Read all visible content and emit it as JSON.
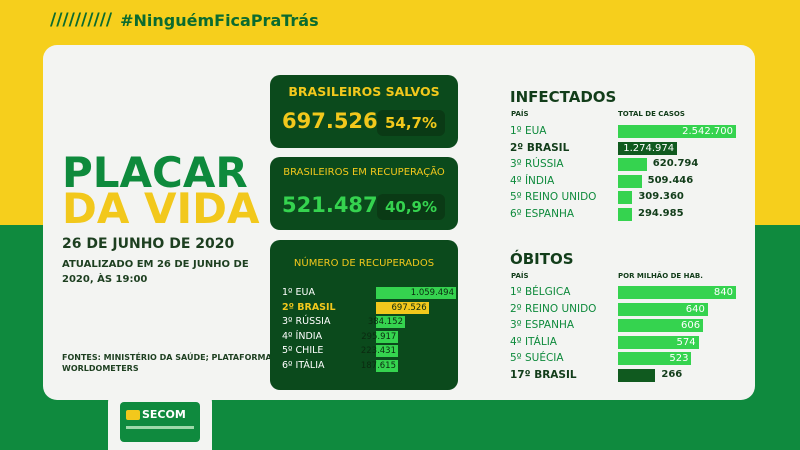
{
  "header": {
    "slashes": "//////////",
    "hashtag": "#NinguémFicaPraTrás"
  },
  "title": {
    "line1": "PLACAR",
    "line2": "DA VIDA",
    "date": "26 DE JUNHO DE 2020",
    "updated": "ATUALIZADO EM 26 DE JUNHO DE 2020, ÀS 19:00",
    "sources": "FONTES: MINISTÉRIO DA SAÚDE; PLATAFORMA WORLDOMETERS"
  },
  "saved": {
    "label": "BRASILEIROS SALVOS",
    "value": "697.526",
    "percent": "54,7%"
  },
  "recovery": {
    "label": "BRASILEIROS EM RECUPERAÇÃO",
    "value": "521.487",
    "percent": "40,9%"
  },
  "recovered": {
    "label": "NÚMERO DE RECUPERADOS",
    "rows": [
      {
        "label": "1º EUA",
        "value": "1.059.494",
        "n": 1059494
      },
      {
        "label": "2º BRASIL",
        "value": "697.526",
        "n": 697526,
        "highlight": true
      },
      {
        "label": "3º RÚSSIA",
        "value": "384.152",
        "n": 384152
      },
      {
        "label": "4º ÍNDIA",
        "value": "295.917",
        "n": 295917
      },
      {
        "label": "5º CHILE",
        "value": "223.431",
        "n": 223431
      },
      {
        "label": "6º ITÁLIA",
        "value": "187.615",
        "n": 187615
      }
    ]
  },
  "infected": {
    "title": "INFECTADOS",
    "col_country": "PAÍS",
    "col_value": "TOTAL DE CASOS",
    "rows": [
      {
        "label": "1º EUA",
        "value": "2.542.700",
        "n": 2542700
      },
      {
        "label": "2º BRASIL",
        "value": "1.274.974",
        "n": 1274974,
        "brazil": true
      },
      {
        "label": "3º RÚSSIA",
        "value": "620.794",
        "n": 620794
      },
      {
        "label": "4º ÍNDIA",
        "value": "509.446",
        "n": 509446
      },
      {
        "label": "5º REINO UNIDO",
        "value": "309.360",
        "n": 309360
      },
      {
        "label": "6º ESPANHA",
        "value": "294.985",
        "n": 294985
      }
    ]
  },
  "deaths": {
    "title": "ÓBITOS",
    "col_country": "PAÍS",
    "col_value": "POR MILHÃO DE HAB.",
    "rows": [
      {
        "label": "1º BÉLGICA",
        "value": "840",
        "n": 840
      },
      {
        "label": "2º REINO UNIDO",
        "value": "640",
        "n": 640
      },
      {
        "label": "3º ESPANHA",
        "value": "606",
        "n": 606
      },
      {
        "label": "4º ITÁLIA",
        "value": "574",
        "n": 574
      },
      {
        "label": "5º SUÉCIA",
        "value": "523",
        "n": 523
      },
      {
        "label": "17º BRASIL",
        "value": "266",
        "n": 266,
        "brazil": true
      }
    ]
  },
  "logo": {
    "text": "SECOM"
  },
  "colors": {
    "yellow": "#f6cf1c",
    "green": "#0f8a3e",
    "dark_green": "#0b4a1c",
    "bright_green": "#35d34f"
  }
}
